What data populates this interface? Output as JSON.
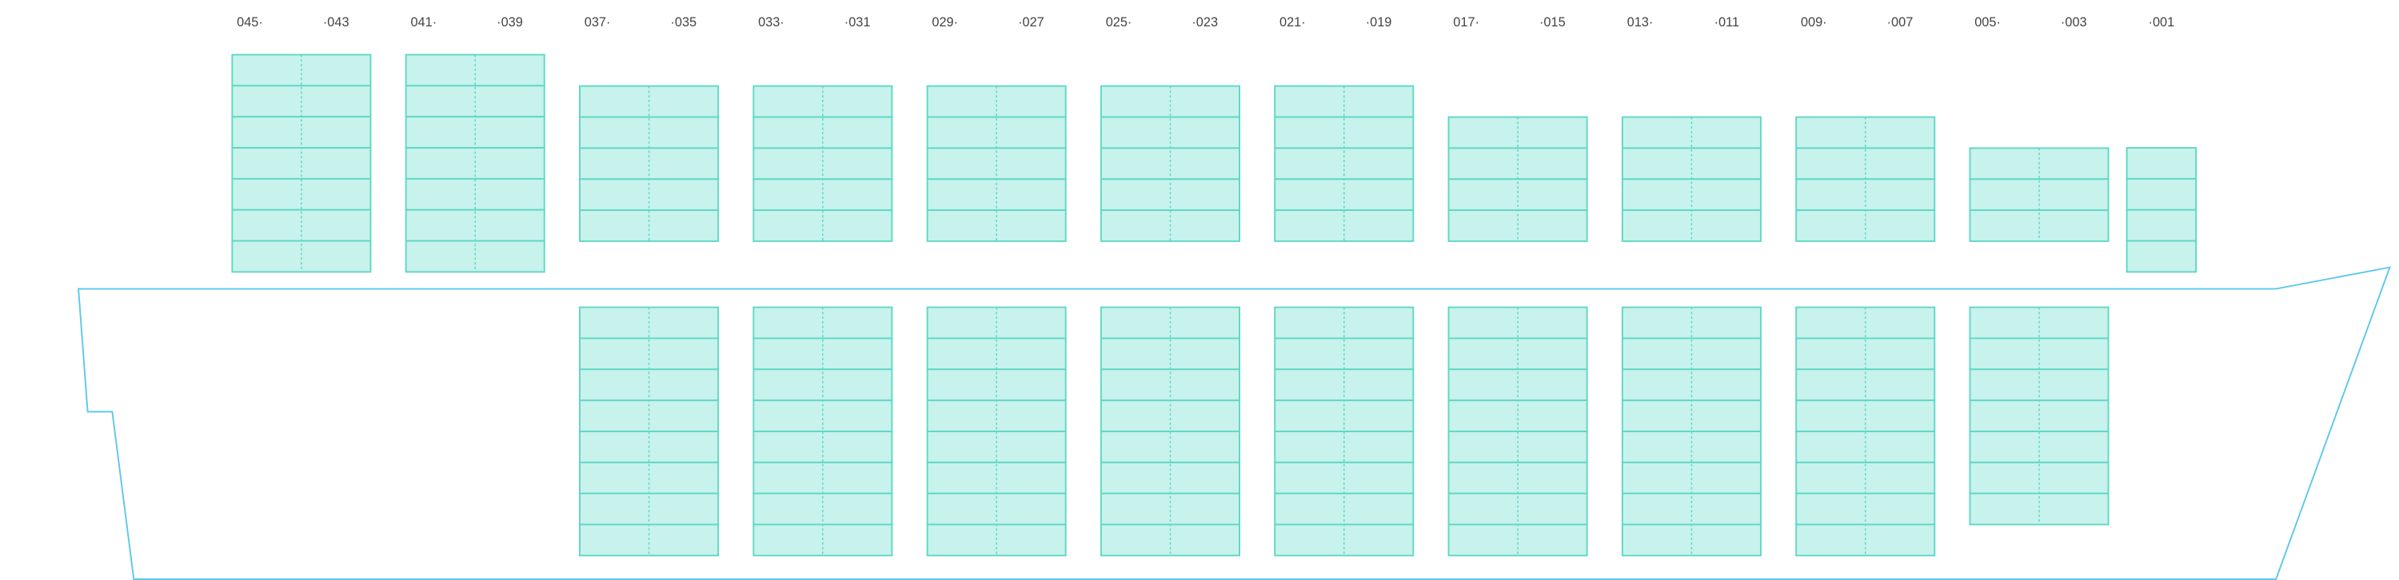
{
  "bays": [
    {
      "labels": [
        "045·",
        "·043"
      ]
    },
    {
      "labels": [
        "041·",
        "·039"
      ]
    },
    {
      "labels": [
        "037·",
        "·035"
      ]
    },
    {
      "labels": [
        "033·",
        "·031"
      ]
    },
    {
      "labels": [
        "029·",
        "·027"
      ]
    },
    {
      "labels": [
        "025·",
        "·023"
      ]
    },
    {
      "labels": [
        "021·",
        "·019"
      ]
    },
    {
      "labels": [
        "017·",
        "·015"
      ]
    },
    {
      "labels": [
        "013·",
        "·011"
      ]
    },
    {
      "labels": [
        "009·",
        "·007"
      ]
    },
    {
      "labels": [
        "005·",
        "·003"
      ]
    },
    {
      "labels": [
        "·001"
      ]
    }
  ]
}
